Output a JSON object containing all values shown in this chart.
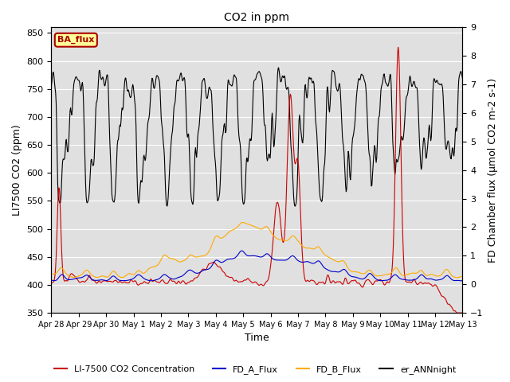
{
  "title": "CO2 in ppm",
  "ylabel_left": "LI7500 CO2 (ppm)",
  "ylabel_right": "FD Chamber flux (μmol CO2 m-2 s-1)",
  "xlabel": "Time",
  "ylim_left": [
    350,
    860
  ],
  "ylim_right": [
    -1.0,
    9.0
  ],
  "yticks_left": [
    350,
    400,
    450,
    500,
    550,
    600,
    650,
    700,
    750,
    800,
    850
  ],
  "yticks_right": [
    -1.0,
    0.0,
    1.0,
    2.0,
    3.0,
    4.0,
    5.0,
    6.0,
    7.0,
    8.0,
    9.0
  ],
  "xtick_labels": [
    "Apr 28",
    "Apr 29",
    "Apr 30",
    "May 1",
    "May 2",
    "May 3",
    "May 4",
    "May 5",
    "May 6",
    "May 7",
    "May 8",
    "May 9",
    "May 10",
    "May 11",
    "May 12",
    "May 13"
  ],
  "legend_labels": [
    "LI-7500 CO2 Concentration",
    "FD_A_Flux",
    "FD_B_Flux",
    "er_ANNnight"
  ],
  "legend_colors": [
    "#cc0000",
    "#0000cc",
    "#ffaa00",
    "#000000"
  ],
  "annotation_text": "BA_flux",
  "annotation_color": "#aa0000",
  "annotation_bg": "#ffff99",
  "bg_color": "#e0e0e0",
  "line_width": 0.8,
  "figsize": [
    6.4,
    4.8
  ],
  "dpi": 100
}
